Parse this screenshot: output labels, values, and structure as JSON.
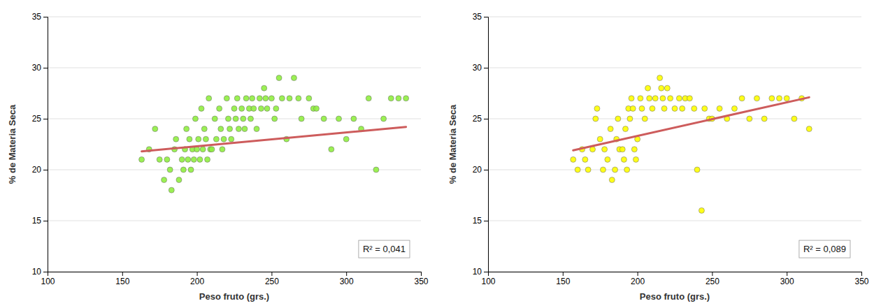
{
  "chart_data": [
    {
      "type": "scatter",
      "xlabel": "Peso fruto (grs.)",
      "ylabel": "% de Materia Seca",
      "annotation": "R² = 0,041",
      "xlim": [
        100,
        350
      ],
      "ylim": [
        10,
        35
      ],
      "xticks": [
        100,
        150,
        200,
        250,
        300,
        350
      ],
      "yticks": [
        10,
        15,
        20,
        25,
        30,
        35
      ],
      "grid": "y",
      "series": [
        {
          "type": "scatter",
          "color": "#90EE40",
          "x": [
            163,
            168,
            172,
            175,
            178,
            180,
            182,
            183,
            185,
            186,
            188,
            190,
            191,
            192,
            193,
            194,
            195,
            196,
            197,
            198,
            199,
            200,
            201,
            202,
            203,
            204,
            205,
            206,
            207,
            208,
            209,
            210,
            212,
            213,
            215,
            216,
            217,
            218,
            220,
            221,
            222,
            223,
            225,
            226,
            227,
            228,
            230,
            231,
            232,
            233,
            235,
            236,
            237,
            238,
            240,
            242,
            243,
            245,
            246,
            247,
            250,
            252,
            253,
            255,
            257,
            260,
            262,
            265,
            268,
            270,
            275,
            278,
            280,
            285,
            290,
            295,
            300,
            305,
            310,
            315,
            320,
            325,
            330,
            335,
            340
          ],
          "values": [
            21,
            22,
            24,
            21,
            19,
            21,
            20,
            18,
            22,
            23,
            19,
            21,
            20,
            22,
            24,
            21,
            23,
            20,
            22,
            21,
            25,
            22,
            23,
            21,
            26,
            22,
            24,
            23,
            21,
            27,
            22,
            22,
            25,
            23,
            26,
            24,
            22,
            23,
            27,
            25,
            24,
            23,
            26,
            25,
            27,
            24,
            26,
            25,
            24,
            27,
            26,
            25,
            27,
            26,
            24,
            27,
            26,
            28,
            27,
            26,
            27,
            25,
            26,
            29,
            27,
            23,
            27,
            29,
            27,
            25,
            27,
            26,
            26,
            25,
            22,
            25,
            23,
            25,
            24,
            27,
            20,
            25,
            27,
            27,
            27
          ]
        },
        {
          "type": "line",
          "color": "#CD5C5C",
          "x": [
            163,
            340
          ],
          "values": [
            21.8,
            24.2
          ]
        }
      ]
    },
    {
      "type": "scatter",
      "xlabel": "Peso fruto (grs.)",
      "ylabel": "% de Materia Seca",
      "annotation": "R² = 0,089",
      "xlim": [
        100,
        350
      ],
      "ylim": [
        10,
        35
      ],
      "xticks": [
        100,
        150,
        200,
        250,
        300,
        350
      ],
      "yticks": [
        10,
        15,
        20,
        25,
        30,
        35
      ],
      "grid": "y",
      "series": [
        {
          "type": "scatter",
          "color": "#FFFF00",
          "x": [
            157,
            160,
            163,
            165,
            167,
            170,
            172,
            173,
            175,
            177,
            178,
            180,
            182,
            183,
            185,
            186,
            187,
            188,
            190,
            191,
            192,
            193,
            194,
            195,
            196,
            197,
            198,
            199,
            200,
            202,
            203,
            205,
            207,
            208,
            210,
            212,
            215,
            216,
            217,
            218,
            220,
            222,
            225,
            228,
            230,
            232,
            235,
            238,
            240,
            243,
            245,
            248,
            250,
            255,
            260,
            265,
            270,
            275,
            280,
            285,
            290,
            295,
            300,
            305,
            310,
            315
          ],
          "values": [
            21,
            20,
            22,
            21,
            20,
            22,
            25,
            26,
            23,
            20,
            22,
            21,
            24,
            19,
            20,
            23,
            25,
            22,
            22,
            21,
            24,
            20,
            26,
            25,
            27,
            26,
            22,
            21,
            23,
            27,
            26,
            25,
            28,
            27,
            26,
            27,
            29,
            28,
            27,
            26,
            28,
            27,
            26,
            27,
            26,
            27,
            27,
            26,
            20,
            16,
            26,
            25,
            25,
            26,
            25,
            26,
            27,
            25,
            27,
            25,
            27,
            27,
            27,
            25,
            27,
            24
          ]
        },
        {
          "type": "line",
          "color": "#CD5C5C",
          "x": [
            157,
            315
          ],
          "values": [
            21.9,
            27.1
          ]
        }
      ]
    }
  ]
}
